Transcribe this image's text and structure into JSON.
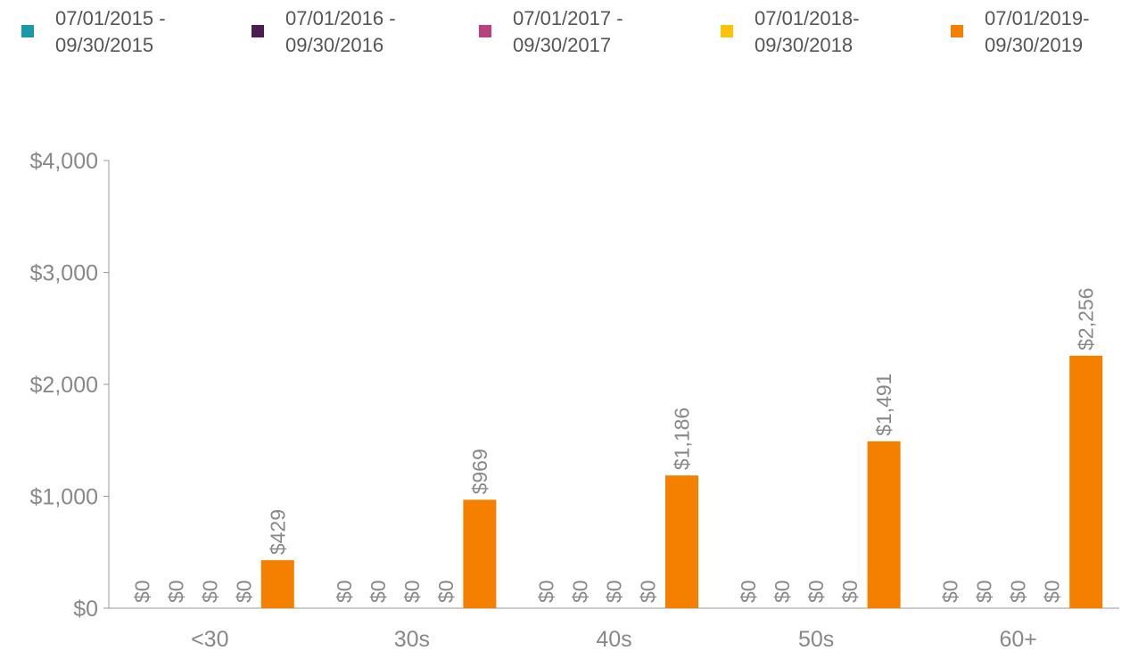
{
  "chart_data": {
    "type": "bar",
    "categories": [
      "<30",
      "30s",
      "40s",
      "50s",
      "60+"
    ],
    "series": [
      {
        "name": "07/01/2015 - 09/30/2015",
        "color": "#1a9aa8",
        "values": [
          0,
          0,
          0,
          0,
          0
        ],
        "value_labels": [
          "$0",
          "$0",
          "$0",
          "$0",
          "$0"
        ]
      },
      {
        "name": "07/01/2016 - 09/30/2016",
        "color": "#4b1d52",
        "values": [
          0,
          0,
          0,
          0,
          0
        ],
        "value_labels": [
          "$0",
          "$0",
          "$0",
          "$0",
          "$0"
        ]
      },
      {
        "name": "07/01/2017 - 09/30/2017",
        "color": "#b8427f",
        "values": [
          0,
          0,
          0,
          0,
          0
        ],
        "value_labels": [
          "$0",
          "$0",
          "$0",
          "$0",
          "$0"
        ]
      },
      {
        "name": "07/01/2018- 09/30/2018",
        "color": "#fcc30b",
        "values": [
          0,
          0,
          0,
          0,
          0
        ],
        "value_labels": [
          "$0",
          "$0",
          "$0",
          "$0",
          "$0"
        ]
      },
      {
        "name": "07/01/2019- 09/30/2019",
        "color": "#f58000",
        "values": [
          429,
          969,
          1186,
          1491,
          2256
        ],
        "value_labels": [
          "$429",
          "$969",
          "$1,186",
          "$1,491",
          "$2,256"
        ]
      }
    ],
    "ylim": [
      0,
      4000
    ],
    "yticks": [
      {
        "value": 0,
        "label": "$0"
      },
      {
        "value": 1000,
        "label": "$1,000"
      },
      {
        "value": 2000,
        "label": "$2,000"
      },
      {
        "value": 3000,
        "label": "$3,000"
      },
      {
        "value": 4000,
        "label": "$4,000"
      }
    ],
    "legend": "top",
    "grid": false
  }
}
